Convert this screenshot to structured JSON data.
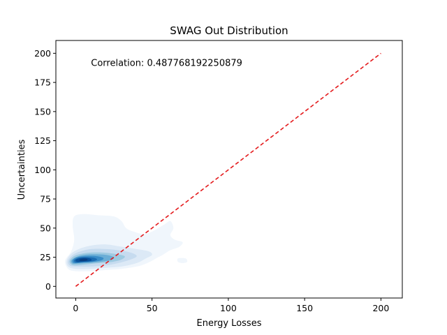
{
  "chart_data": {
    "type": "kde-density",
    "title": "SWAG Out Distribution",
    "xlabel": "Energy Losses",
    "ylabel": "Uncertainties",
    "xlim": [
      -13,
      214
    ],
    "ylim": [
      -10,
      211
    ],
    "xticks": [
      0,
      50,
      100,
      150,
      200
    ],
    "yticks": [
      0,
      25,
      50,
      75,
      100,
      125,
      150,
      175,
      200
    ],
    "annotation": {
      "text": "Correlation: 0.487768192250879",
      "x": 10,
      "y": 189
    },
    "reference_line": {
      "style": "dashed",
      "color": "#e41a1c",
      "points": [
        [
          0,
          0
        ],
        [
          200,
          200
        ]
      ]
    },
    "colormap": "Blues",
    "density_levels": [
      {
        "level": 1,
        "color": "#f0f6fc",
        "contour": [
          [
            -5,
            15
          ],
          [
            -7,
            22
          ],
          [
            -3,
            30
          ],
          [
            -1,
            40
          ],
          [
            -2,
            52
          ],
          [
            -1,
            60
          ],
          [
            5,
            62
          ],
          [
            15,
            61
          ],
          [
            25,
            60
          ],
          [
            30,
            56
          ],
          [
            33,
            50
          ],
          [
            38,
            47
          ],
          [
            44,
            45
          ],
          [
            50,
            47
          ],
          [
            58,
            53
          ],
          [
            62,
            56
          ],
          [
            64,
            50
          ],
          [
            62,
            44
          ],
          [
            65,
            40
          ],
          [
            70,
            38
          ],
          [
            68,
            34
          ],
          [
            62,
            31
          ],
          [
            57,
            27
          ],
          [
            54,
            25
          ],
          [
            50,
            22
          ],
          [
            45,
            19
          ],
          [
            40,
            17
          ],
          [
            30,
            15
          ],
          [
            20,
            14
          ],
          [
            10,
            13
          ],
          [
            0,
            13
          ]
        ]
      },
      {
        "level": 1,
        "color": "#f0f6fc",
        "contour": [
          [
            67,
            24
          ],
          [
            72,
            24
          ],
          [
            73,
            21
          ],
          [
            70,
            20
          ],
          [
            67,
            21
          ]
        ]
      },
      {
        "level": 2,
        "color": "#dce9f6",
        "contour": [
          [
            -5,
            17
          ],
          [
            -6,
            22
          ],
          [
            -3,
            28
          ],
          [
            2,
            32
          ],
          [
            10,
            35
          ],
          [
            20,
            36
          ],
          [
            30,
            34
          ],
          [
            40,
            32
          ],
          [
            48,
            30
          ],
          [
            50,
            27
          ],
          [
            46,
            24
          ],
          [
            40,
            20
          ],
          [
            30,
            17
          ],
          [
            20,
            16
          ],
          [
            10,
            15
          ],
          [
            0,
            15
          ]
        ]
      },
      {
        "level": 3,
        "color": "#c6dbef",
        "contour": [
          [
            -4,
            18
          ],
          [
            -5,
            22
          ],
          [
            -2,
            27
          ],
          [
            3,
            30
          ],
          [
            10,
            32
          ],
          [
            20,
            32
          ],
          [
            28,
            31
          ],
          [
            36,
            29
          ],
          [
            40,
            26
          ],
          [
            36,
            23
          ],
          [
            28,
            20
          ],
          [
            20,
            18
          ],
          [
            10,
            17
          ],
          [
            0,
            17
          ]
        ]
      },
      {
        "level": 4,
        "color": "#9ecae1",
        "contour": [
          [
            -3,
            19
          ],
          [
            -4,
            22
          ],
          [
            -1,
            26
          ],
          [
            4,
            28
          ],
          [
            10,
            29
          ],
          [
            18,
            29
          ],
          [
            25,
            28
          ],
          [
            32,
            26
          ],
          [
            30,
            23
          ],
          [
            24,
            21
          ],
          [
            16,
            20
          ],
          [
            8,
            19
          ],
          [
            0,
            18
          ]
        ]
      },
      {
        "level": 5,
        "color": "#6baed6",
        "contour": [
          [
            -2,
            19.5
          ],
          [
            -3,
            22
          ],
          [
            0,
            25
          ],
          [
            5,
            27
          ],
          [
            12,
            27.5
          ],
          [
            20,
            27
          ],
          [
            25,
            25
          ],
          [
            23,
            22.5
          ],
          [
            16,
            21
          ],
          [
            8,
            20
          ],
          [
            1,
            19.5
          ]
        ]
      },
      {
        "level": 6,
        "color": "#3a8dc8",
        "contour": [
          [
            -1,
            20
          ],
          [
            -2,
            22.5
          ],
          [
            1,
            25
          ],
          [
            6,
            26
          ],
          [
            13,
            26
          ],
          [
            18,
            24.5
          ],
          [
            17,
            22.5
          ],
          [
            11,
            21
          ],
          [
            5,
            20.5
          ]
        ]
      },
      {
        "level": 7,
        "color": "#1c6cb1",
        "contour": [
          [
            0,
            20.5
          ],
          [
            -1,
            22.5
          ],
          [
            2,
            24.5
          ],
          [
            7,
            25
          ],
          [
            12,
            24.5
          ],
          [
            14,
            23
          ],
          [
            11,
            21.5
          ],
          [
            5,
            21
          ]
        ]
      },
      {
        "level": 8,
        "color": "#08519c",
        "contour": [
          [
            1,
            21
          ],
          [
            0,
            22.8
          ],
          [
            3,
            24.3
          ],
          [
            7,
            24.5
          ],
          [
            10,
            23.5
          ],
          [
            10,
            22
          ],
          [
            6,
            21.3
          ]
        ]
      },
      {
        "level": 9,
        "color": "#083e80",
        "contour": [
          [
            3,
            21.8
          ],
          [
            2.5,
            23
          ],
          [
            5,
            23.8
          ],
          [
            7.5,
            23.5
          ],
          [
            7.5,
            22.3
          ],
          [
            5.5,
            21.8
          ]
        ]
      }
    ]
  }
}
